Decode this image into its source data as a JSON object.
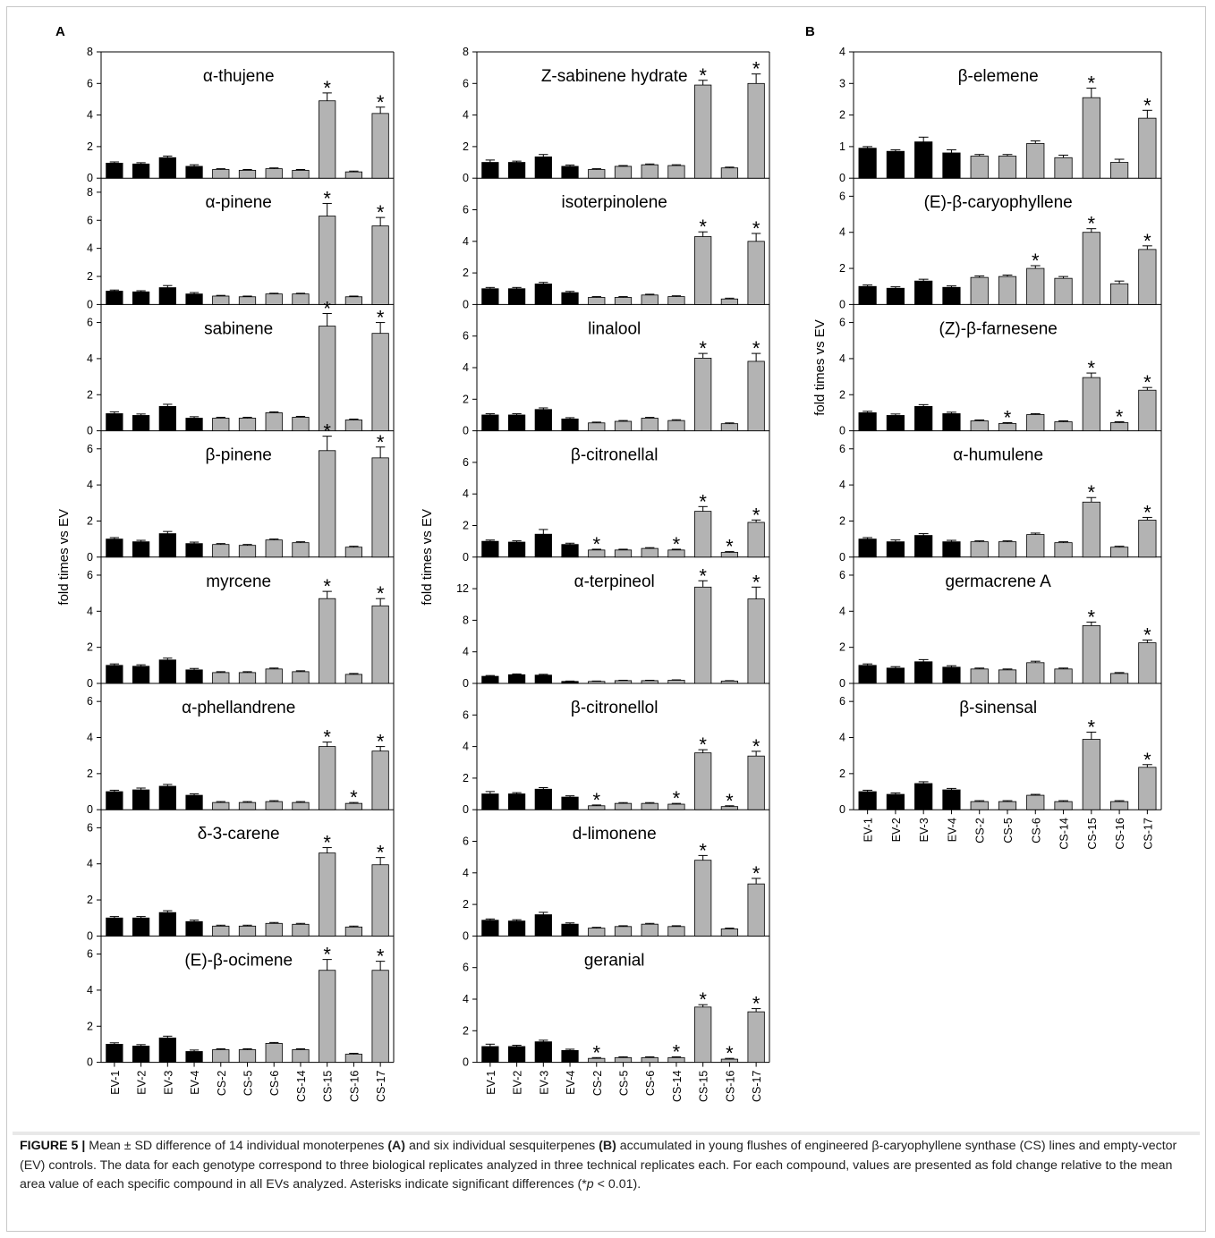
{
  "figure": {
    "label": "FIGURE 5 |",
    "panel_labels": [
      "A",
      "B"
    ],
    "y_label": "fold times vs EV",
    "caption": {
      "t1": " Mean ± SD difference of 14 individual monoterpenes ",
      "b1": "(A)",
      "t2": " and six individual sesquiterpenes ",
      "b2": "(B)",
      "t3": " accumulated in young flushes of engineered β-caryophyllene synthase (CS) lines and empty-vector (EV) controls. The data for each genotype correspond to three biological replicates analyzed in three technical replicates each. For each compound, values are presented as fold change relative to the mean area value of each specific compound in all EVs analyzed. Asterisks indicate significant differences (*",
      "p": "p",
      "t4": " < 0.01)."
    },
    "colors": {
      "ev_bar": "#000000",
      "cs_bar": "#b3b3b3",
      "axis": "#000000"
    },
    "significance_marker": "*"
  },
  "chart_data": [
    {
      "panel": "A",
      "column": 1,
      "type": "bar",
      "categories": [
        "EV-1",
        "EV-2",
        "EV-3",
        "EV-4",
        "CS-2",
        "CS-5",
        "CS-6",
        "CS-14",
        "CS-15",
        "CS-16",
        "CS-17"
      ],
      "ylabel": "fold times vs EV",
      "subplots": [
        {
          "title": "α-thujene",
          "ylim": [
            0,
            8
          ],
          "yticks": [
            "0",
            "2",
            "4",
            "6",
            "8"
          ],
          "values": [
            0.95,
            0.9,
            1.3,
            0.75,
            0.55,
            0.5,
            0.6,
            0.5,
            4.9,
            0.4,
            4.1
          ],
          "errors": [
            0.08,
            0.08,
            0.1,
            0.1,
            0.05,
            0.05,
            0.05,
            0.05,
            0.5,
            0.05,
            0.4
          ],
          "sig": [
            8,
            10
          ]
        },
        {
          "title": "α-pinene",
          "ylim": [
            0,
            9
          ],
          "yticks": [
            "0",
            "2",
            "4",
            "6",
            "8"
          ],
          "values": [
            0.95,
            0.9,
            1.2,
            0.75,
            0.6,
            0.55,
            0.75,
            0.75,
            6.3,
            0.55,
            5.6
          ],
          "errors": [
            0.08,
            0.08,
            0.15,
            0.1,
            0.05,
            0.05,
            0.05,
            0.05,
            0.9,
            0.05,
            0.6
          ],
          "sig": [
            8,
            10
          ]
        },
        {
          "title": "sabinene",
          "ylim": [
            0,
            7
          ],
          "yticks": [
            "0",
            "2",
            "4",
            "6"
          ],
          "values": [
            0.95,
            0.85,
            1.35,
            0.7,
            0.7,
            0.7,
            1.0,
            0.75,
            5.8,
            0.6,
            5.4
          ],
          "errors": [
            0.1,
            0.08,
            0.12,
            0.08,
            0.05,
            0.05,
            0.05,
            0.05,
            0.7,
            0.05,
            0.6
          ],
          "sig": [
            8,
            10
          ]
        },
        {
          "title": "β-pinene",
          "ylim": [
            0,
            7
          ],
          "yticks": [
            "0",
            "2",
            "4",
            "6"
          ],
          "values": [
            1.0,
            0.85,
            1.3,
            0.75,
            0.7,
            0.65,
            0.95,
            0.8,
            5.9,
            0.55,
            5.5
          ],
          "errors": [
            0.08,
            0.08,
            0.12,
            0.08,
            0.05,
            0.05,
            0.05,
            0.05,
            0.8,
            0.05,
            0.6
          ],
          "sig": [
            8,
            10
          ]
        },
        {
          "title": "myrcene",
          "ylim": [
            0,
            7
          ],
          "yticks": [
            "0",
            "2",
            "4",
            "6"
          ],
          "values": [
            1.0,
            0.95,
            1.3,
            0.75,
            0.6,
            0.6,
            0.8,
            0.65,
            4.7,
            0.5,
            4.3
          ],
          "errors": [
            0.08,
            0.08,
            0.1,
            0.08,
            0.05,
            0.05,
            0.05,
            0.05,
            0.4,
            0.05,
            0.4
          ],
          "sig": [
            8,
            10
          ]
        },
        {
          "title": "α-phellandrene",
          "ylim": [
            0,
            7
          ],
          "yticks": [
            "0",
            "2",
            "4",
            "6"
          ],
          "values": [
            1.0,
            1.1,
            1.3,
            0.8,
            0.4,
            0.4,
            0.45,
            0.4,
            3.5,
            0.35,
            3.25
          ],
          "errors": [
            0.08,
            0.1,
            0.1,
            0.08,
            0.05,
            0.05,
            0.05,
            0.05,
            0.25,
            0.05,
            0.25
          ],
          "sig": [
            8,
            9,
            10
          ]
        },
        {
          "title": "δ-3-carene",
          "ylim": [
            0,
            7
          ],
          "yticks": [
            "0",
            "2",
            "4",
            "6"
          ],
          "values": [
            1.0,
            1.0,
            1.3,
            0.8,
            0.55,
            0.55,
            0.7,
            0.65,
            4.6,
            0.5,
            3.95
          ],
          "errors": [
            0.08,
            0.08,
            0.1,
            0.08,
            0.05,
            0.05,
            0.05,
            0.05,
            0.3,
            0.05,
            0.4
          ],
          "sig": [
            8,
            10
          ]
        },
        {
          "title": "(E)-β-ocimene",
          "ylim": [
            0,
            7
          ],
          "yticks": [
            "0",
            "2",
            "4",
            "6"
          ],
          "values": [
            1.0,
            0.9,
            1.35,
            0.6,
            0.7,
            0.7,
            1.05,
            0.7,
            5.1,
            0.45,
            5.1
          ],
          "errors": [
            0.08,
            0.08,
            0.1,
            0.08,
            0.05,
            0.05,
            0.05,
            0.05,
            0.6,
            0.05,
            0.5
          ],
          "sig": [
            8,
            10
          ]
        }
      ]
    },
    {
      "panel": "A",
      "column": 2,
      "type": "bar",
      "categories": [
        "EV-1",
        "EV-2",
        "EV-3",
        "EV-4",
        "CS-2",
        "CS-5",
        "CS-6",
        "CS-14",
        "CS-15",
        "CS-16",
        "CS-17"
      ],
      "ylabel": "fold times vs EV",
      "subplots": [
        {
          "title": "Z-sabinene hydrate",
          "ylim": [
            0,
            8
          ],
          "yticks": [
            "0",
            "2",
            "4",
            "6",
            "8"
          ],
          "values": [
            1.0,
            1.0,
            1.35,
            0.75,
            0.55,
            0.75,
            0.85,
            0.8,
            5.9,
            0.65,
            6.0
          ],
          "errors": [
            0.15,
            0.08,
            0.15,
            0.08,
            0.05,
            0.05,
            0.05,
            0.05,
            0.3,
            0.05,
            0.6
          ],
          "sig": [
            8,
            10
          ]
        },
        {
          "title": "isoterpinolene",
          "ylim": [
            0,
            8
          ],
          "yticks": [
            "0",
            "2",
            "4",
            "6"
          ],
          "values": [
            1.0,
            1.0,
            1.3,
            0.75,
            0.45,
            0.45,
            0.6,
            0.5,
            4.3,
            0.35,
            4.0
          ],
          "errors": [
            0.08,
            0.08,
            0.1,
            0.08,
            0.05,
            0.05,
            0.05,
            0.05,
            0.3,
            0.05,
            0.5
          ],
          "sig": [
            8,
            10
          ]
        },
        {
          "title": "linalool",
          "ylim": [
            0,
            8
          ],
          "yticks": [
            "0",
            "2",
            "4",
            "6"
          ],
          "values": [
            1.0,
            1.0,
            1.35,
            0.75,
            0.5,
            0.6,
            0.8,
            0.65,
            4.6,
            0.45,
            4.4
          ],
          "errors": [
            0.08,
            0.08,
            0.1,
            0.08,
            0.05,
            0.05,
            0.05,
            0.05,
            0.3,
            0.05,
            0.5
          ],
          "sig": [
            8,
            10
          ]
        },
        {
          "title": "β-citronellal",
          "ylim": [
            0,
            8
          ],
          "yticks": [
            "0",
            "2",
            "4",
            "6"
          ],
          "values": [
            1.0,
            0.95,
            1.45,
            0.8,
            0.45,
            0.45,
            0.55,
            0.45,
            2.9,
            0.3,
            2.2
          ],
          "errors": [
            0.08,
            0.08,
            0.3,
            0.08,
            0.05,
            0.05,
            0.05,
            0.05,
            0.3,
            0.05,
            0.15
          ],
          "sig": [
            4,
            7,
            8,
            9,
            10
          ]
        },
        {
          "title": "α-terpineol",
          "ylim": [
            0,
            16
          ],
          "yticks": [
            "0",
            "4",
            "8",
            "12"
          ],
          "values": [
            0.9,
            1.1,
            1.05,
            0.25,
            0.25,
            0.35,
            0.35,
            0.4,
            12.2,
            0.3,
            10.7
          ],
          "errors": [
            0.1,
            0.1,
            0.1,
            0.05,
            0.05,
            0.05,
            0.05,
            0.05,
            0.8,
            0.05,
            1.5
          ],
          "sig": [
            8,
            10
          ]
        },
        {
          "title": "β-citronellol",
          "ylim": [
            0,
            8
          ],
          "yticks": [
            "0",
            "2",
            "4",
            "6"
          ],
          "values": [
            1.0,
            1.0,
            1.3,
            0.8,
            0.25,
            0.4,
            0.4,
            0.35,
            3.6,
            0.2,
            3.4
          ],
          "errors": [
            0.15,
            0.08,
            0.1,
            0.08,
            0.05,
            0.05,
            0.05,
            0.05,
            0.2,
            0.05,
            0.3
          ],
          "sig": [
            4,
            7,
            8,
            9,
            10
          ]
        },
        {
          "title": "d-limonene",
          "ylim": [
            0,
            8
          ],
          "yticks": [
            "0",
            "2",
            "4",
            "6"
          ],
          "values": [
            1.0,
            0.95,
            1.35,
            0.75,
            0.5,
            0.6,
            0.75,
            0.6,
            4.8,
            0.45,
            3.3
          ],
          "errors": [
            0.08,
            0.08,
            0.15,
            0.08,
            0.05,
            0.05,
            0.05,
            0.05,
            0.3,
            0.05,
            0.35
          ],
          "sig": [
            8,
            10
          ]
        },
        {
          "title": "geranial",
          "ylim": [
            0,
            8
          ],
          "yticks": [
            "0",
            "2",
            "4",
            "6"
          ],
          "values": [
            1.0,
            1.0,
            1.3,
            0.75,
            0.25,
            0.3,
            0.3,
            0.3,
            3.5,
            0.2,
            3.2
          ],
          "errors": [
            0.15,
            0.08,
            0.1,
            0.08,
            0.05,
            0.05,
            0.05,
            0.05,
            0.15,
            0.05,
            0.2
          ],
          "sig": [
            4,
            7,
            8,
            9,
            10
          ]
        }
      ]
    },
    {
      "panel": "B",
      "column": 3,
      "type": "bar",
      "categories": [
        "EV-1",
        "EV-2",
        "EV-3",
        "EV-4",
        "CS-2",
        "CS-5",
        "CS-6",
        "CS-14",
        "CS-15",
        "CS-16",
        "CS-17"
      ],
      "ylabel": "fold times vs EV",
      "subplots": [
        {
          "title": "β-elemene",
          "ylim": [
            0,
            4
          ],
          "yticks": [
            "0",
            "1",
            "2",
            "3",
            "4"
          ],
          "values": [
            0.95,
            0.85,
            1.15,
            0.8,
            0.7,
            0.7,
            1.1,
            0.65,
            2.55,
            0.5,
            1.9
          ],
          "errors": [
            0.05,
            0.05,
            0.15,
            0.1,
            0.05,
            0.05,
            0.08,
            0.08,
            0.3,
            0.1,
            0.25
          ],
          "sig": [
            8,
            10
          ]
        },
        {
          "title": "(E)-β-caryophyllene",
          "ylim": [
            0,
            7
          ],
          "yticks": [
            "0",
            "2",
            "4",
            "6"
          ],
          "values": [
            1.0,
            0.9,
            1.3,
            0.95,
            1.5,
            1.55,
            2.0,
            1.45,
            4.0,
            1.15,
            3.05
          ],
          "errors": [
            0.08,
            0.08,
            0.1,
            0.08,
            0.08,
            0.08,
            0.15,
            0.1,
            0.2,
            0.15,
            0.2
          ],
          "sig": [
            6,
            8,
            10
          ]
        },
        {
          "title": "(Z)-β-farnesene",
          "ylim": [
            0,
            7
          ],
          "yticks": [
            "0",
            "2",
            "4",
            "6"
          ],
          "values": [
            1.0,
            0.85,
            1.35,
            0.95,
            0.55,
            0.4,
            0.9,
            0.5,
            2.95,
            0.45,
            2.25
          ],
          "errors": [
            0.08,
            0.08,
            0.1,
            0.08,
            0.05,
            0.05,
            0.05,
            0.05,
            0.25,
            0.05,
            0.15
          ],
          "sig": [
            5,
            8,
            9,
            10
          ]
        },
        {
          "title": "α-humulene",
          "ylim": [
            0,
            7
          ],
          "yticks": [
            "0",
            "2",
            "4",
            "6"
          ],
          "values": [
            1.0,
            0.85,
            1.2,
            0.85,
            0.85,
            0.85,
            1.25,
            0.8,
            3.05,
            0.55,
            2.05
          ],
          "errors": [
            0.08,
            0.1,
            0.1,
            0.08,
            0.05,
            0.05,
            0.08,
            0.05,
            0.25,
            0.05,
            0.15
          ],
          "sig": [
            8,
            10
          ]
        },
        {
          "title": "germacrene A",
          "ylim": [
            0,
            7
          ],
          "yticks": [
            "0",
            "2",
            "4",
            "6"
          ],
          "values": [
            1.0,
            0.85,
            1.2,
            0.9,
            0.8,
            0.75,
            1.15,
            0.8,
            3.2,
            0.55,
            2.25
          ],
          "errors": [
            0.08,
            0.08,
            0.12,
            0.08,
            0.05,
            0.05,
            0.08,
            0.05,
            0.2,
            0.05,
            0.15
          ],
          "sig": [
            8,
            10
          ]
        },
        {
          "title": "β-sinensal",
          "ylim": [
            0,
            7
          ],
          "yticks": [
            "0",
            "2",
            "4",
            "6"
          ],
          "values": [
            1.0,
            0.85,
            1.45,
            1.1,
            0.45,
            0.45,
            0.8,
            0.45,
            3.9,
            0.45,
            2.35
          ],
          "errors": [
            0.08,
            0.08,
            0.1,
            0.08,
            0.05,
            0.05,
            0.05,
            0.05,
            0.4,
            0.05,
            0.15
          ],
          "sig": [
            8,
            10
          ]
        }
      ]
    }
  ]
}
